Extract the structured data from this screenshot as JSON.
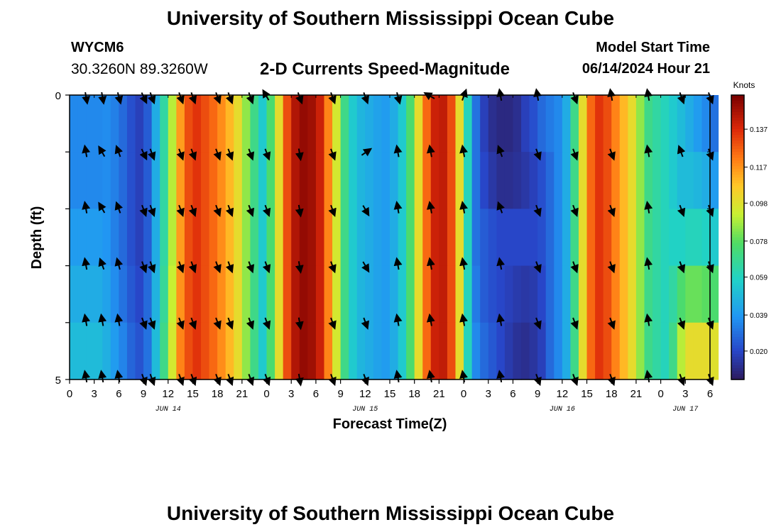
{
  "header": {
    "title": "University of Southern Mississippi Ocean Cube",
    "station": "WYCM6",
    "coordinates": "30.3260N  89.3260W",
    "subtitle": "2-D Currents Speed-Magnitude",
    "model_start_label": "Model Start Time",
    "model_start_value": "06/14/2024 Hour 21"
  },
  "footer": {
    "title": "University of Southern Mississippi Ocean Cube"
  },
  "chart_data": {
    "type": "heatmap",
    "title": "2-D Currents Speed-Magnitude",
    "xlabel": "Forecast Time(Z)",
    "ylabel": "Depth (ft)",
    "x_tick_labels": [
      "0",
      "3",
      "6",
      "9",
      "12",
      "15",
      "18",
      "21",
      "0",
      "3",
      "6",
      "9",
      "12",
      "15",
      "18",
      "21",
      "0",
      "3",
      "6",
      "9",
      "12",
      "15",
      "18",
      "21",
      "0",
      "3",
      "6"
    ],
    "day_labels": [
      {
        "label": "JUN 14",
        "hour": 12
      },
      {
        "label": "JUN 15",
        "hour": 36
      },
      {
        "label": "JUN 16",
        "hour": 60
      },
      {
        "label": "JUN 17",
        "hour": 75
      }
    ],
    "x_range_hours": [
      0,
      78
    ],
    "y_tick_labels": [
      "0",
      "5"
    ],
    "y_range_ft": [
      0,
      5
    ],
    "depth_levels": 5,
    "colorbar": {
      "unit": "Knots",
      "tick_labels": [
        "0.137",
        "0.117",
        "0.098",
        "0.078",
        "0.059",
        "0.039",
        "0.020"
      ],
      "range": [
        0.005,
        0.155
      ]
    },
    "speed_grid": {
      "hours": [
        0,
        1,
        2,
        3,
        4,
        5,
        6,
        7,
        8,
        9,
        10,
        11,
        12,
        13,
        14,
        15,
        16,
        17,
        18,
        19,
        20,
        21,
        22,
        23,
        24,
        25,
        26,
        27,
        28,
        29,
        30,
        31,
        32,
        33,
        34,
        35,
        36,
        37,
        38,
        39,
        40,
        41,
        42,
        43,
        44,
        45,
        46,
        47,
        48,
        49,
        50,
        51,
        52,
        53,
        54,
        55,
        56,
        57,
        58,
        59,
        60,
        61,
        62,
        63,
        64,
        65,
        66,
        67,
        68,
        69,
        70,
        71,
        72,
        73,
        74,
        75,
        76,
        77,
        78
      ],
      "rows": [
        [
          0.035,
          0.035,
          0.035,
          0.035,
          0.036,
          0.033,
          0.028,
          0.022,
          0.018,
          0.025,
          0.045,
          0.065,
          0.09,
          0.115,
          0.13,
          0.135,
          0.13,
          0.125,
          0.118,
          0.11,
          0.1,
          0.085,
          0.07,
          0.055,
          0.075,
          0.1,
          0.13,
          0.145,
          0.15,
          0.148,
          0.14,
          0.12,
          0.095,
          0.07,
          0.055,
          0.048,
          0.045,
          0.042,
          0.04,
          0.045,
          0.055,
          0.075,
          0.1,
          0.125,
          0.14,
          0.142,
          0.13,
          0.1,
          0.06,
          0.03,
          0.018,
          0.012,
          0.01,
          0.01,
          0.012,
          0.018,
          0.022,
          0.028,
          0.032,
          0.035,
          0.045,
          0.07,
          0.1,
          0.125,
          0.135,
          0.13,
          0.12,
          0.11,
          0.1,
          0.085,
          0.07,
          0.065,
          0.06,
          0.055,
          0.05,
          0.045,
          0.04,
          0.035,
          0.03
        ],
        [
          0.035,
          0.035,
          0.035,
          0.035,
          0.036,
          0.033,
          0.028,
          0.022,
          0.018,
          0.025,
          0.045,
          0.065,
          0.09,
          0.115,
          0.13,
          0.135,
          0.13,
          0.125,
          0.118,
          0.11,
          0.1,
          0.085,
          0.07,
          0.055,
          0.075,
          0.1,
          0.13,
          0.145,
          0.15,
          0.148,
          0.14,
          0.12,
          0.095,
          0.07,
          0.055,
          0.048,
          0.045,
          0.042,
          0.04,
          0.045,
          0.055,
          0.075,
          0.1,
          0.125,
          0.14,
          0.142,
          0.13,
          0.1,
          0.06,
          0.03,
          0.02,
          0.015,
          0.012,
          0.012,
          0.013,
          0.015,
          0.018,
          0.022,
          0.028,
          0.035,
          0.045,
          0.07,
          0.1,
          0.125,
          0.135,
          0.13,
          0.12,
          0.11,
          0.1,
          0.085,
          0.07,
          0.065,
          0.06,
          0.055,
          0.05,
          0.05,
          0.048,
          0.045,
          0.04
        ],
        [
          0.04,
          0.04,
          0.04,
          0.04,
          0.038,
          0.033,
          0.028,
          0.022,
          0.018,
          0.025,
          0.045,
          0.065,
          0.09,
          0.115,
          0.13,
          0.135,
          0.13,
          0.125,
          0.118,
          0.11,
          0.1,
          0.085,
          0.07,
          0.055,
          0.075,
          0.1,
          0.13,
          0.145,
          0.15,
          0.148,
          0.14,
          0.12,
          0.095,
          0.07,
          0.055,
          0.048,
          0.045,
          0.042,
          0.04,
          0.045,
          0.055,
          0.075,
          0.1,
          0.125,
          0.14,
          0.142,
          0.13,
          0.1,
          0.06,
          0.03,
          0.025,
          0.022,
          0.02,
          0.02,
          0.02,
          0.02,
          0.02,
          0.022,
          0.028,
          0.035,
          0.045,
          0.07,
          0.1,
          0.125,
          0.135,
          0.13,
          0.12,
          0.11,
          0.1,
          0.085,
          0.07,
          0.065,
          0.06,
          0.058,
          0.058,
          0.06,
          0.06,
          0.058,
          0.055
        ],
        [
          0.045,
          0.045,
          0.045,
          0.045,
          0.042,
          0.036,
          0.03,
          0.024,
          0.02,
          0.028,
          0.047,
          0.067,
          0.092,
          0.117,
          0.13,
          0.135,
          0.13,
          0.125,
          0.118,
          0.11,
          0.1,
          0.085,
          0.07,
          0.055,
          0.075,
          0.1,
          0.13,
          0.145,
          0.15,
          0.148,
          0.14,
          0.12,
          0.095,
          0.07,
          0.055,
          0.048,
          0.045,
          0.042,
          0.04,
          0.045,
          0.055,
          0.075,
          0.1,
          0.125,
          0.14,
          0.142,
          0.13,
          0.1,
          0.06,
          0.032,
          0.025,
          0.022,
          0.02,
          0.018,
          0.016,
          0.015,
          0.016,
          0.02,
          0.028,
          0.035,
          0.045,
          0.07,
          0.1,
          0.125,
          0.135,
          0.13,
          0.12,
          0.11,
          0.1,
          0.085,
          0.07,
          0.065,
          0.06,
          0.065,
          0.075,
          0.08,
          0.08,
          0.078,
          0.075
        ],
        [
          0.05,
          0.05,
          0.05,
          0.05,
          0.046,
          0.04,
          0.034,
          0.027,
          0.023,
          0.03,
          0.05,
          0.07,
          0.095,
          0.12,
          0.13,
          0.135,
          0.13,
          0.125,
          0.118,
          0.11,
          0.1,
          0.085,
          0.07,
          0.055,
          0.075,
          0.1,
          0.13,
          0.145,
          0.15,
          0.148,
          0.14,
          0.12,
          0.095,
          0.07,
          0.055,
          0.048,
          0.045,
          0.042,
          0.04,
          0.045,
          0.055,
          0.075,
          0.1,
          0.125,
          0.14,
          0.142,
          0.13,
          0.1,
          0.06,
          0.035,
          0.028,
          0.024,
          0.02,
          0.016,
          0.013,
          0.012,
          0.014,
          0.018,
          0.028,
          0.035,
          0.045,
          0.07,
          0.1,
          0.125,
          0.135,
          0.13,
          0.12,
          0.11,
          0.1,
          0.085,
          0.07,
          0.065,
          0.06,
          0.07,
          0.09,
          0.1,
          0.1,
          0.1,
          0.098
        ]
      ]
    },
    "vectors": {
      "hours": [
        4,
        9,
        13.5,
        18,
        22,
        2,
        6,
        10,
        15,
        19.5,
        24,
        28,
        32,
        36,
        40,
        44,
        48,
        52.5,
        57,
        61.5,
        66,
        70.5,
        74.5,
        78
      ],
      "directions_deg": [
        [
          170,
          155,
          160,
          160,
          160,
          170,
          165,
          160,
          160,
          160,
          330,
          160,
          160,
          160,
          165,
          300,
          20,
          350,
          350,
          160,
          350,
          350,
          160,
          160
        ],
        [
          330,
          155,
          160,
          160,
          160,
          350,
          340,
          160,
          160,
          160,
          160,
          170,
          160,
          55,
          350,
          350,
          350,
          340,
          160,
          160,
          160,
          350,
          340,
          160
        ],
        [
          330,
          160,
          160,
          160,
          160,
          350,
          340,
          160,
          160,
          160,
          160,
          170,
          160,
          150,
          350,
          350,
          350,
          340,
          160,
          160,
          160,
          350,
          160,
          160
        ],
        [
          340,
          160,
          160,
          160,
          160,
          350,
          345,
          160,
          160,
          160,
          160,
          170,
          160,
          150,
          350,
          350,
          350,
          350,
          160,
          160,
          160,
          350,
          160,
          160
        ],
        [
          350,
          160,
          160,
          160,
          160,
          350,
          350,
          160,
          160,
          160,
          160,
          170,
          160,
          160,
          350,
          350,
          350,
          350,
          160,
          160,
          160,
          350,
          160,
          160
        ],
        [
          350,
          160,
          160,
          160,
          160,
          350,
          350,
          160,
          160,
          160,
          160,
          170,
          160,
          160,
          350,
          350,
          350,
          350,
          160,
          160,
          160,
          350,
          160,
          160
        ]
      ]
    }
  }
}
